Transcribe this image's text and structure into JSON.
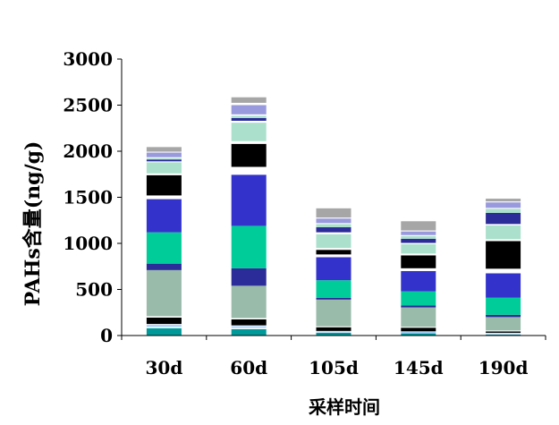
{
  "chart_data": {
    "type": "bar",
    "stacked": true,
    "title": "",
    "xlabel": "采样时间",
    "ylabel": "PAHs含量(ng/g)",
    "ylim": [
      0,
      3000
    ],
    "yticks": [
      0,
      500,
      1000,
      1500,
      2000,
      2500,
      3000
    ],
    "grid": false,
    "legend": "none",
    "categories": [
      "30d",
      "60d",
      "105d",
      "145d",
      "190d"
    ],
    "series": [
      {
        "color": "#009999",
        "values": [
          80,
          70,
          30,
          25,
          10
        ]
      },
      {
        "color": "#ffffff",
        "values": [
          15,
          15,
          5,
          5,
          5
        ]
      },
      {
        "color": "#99ccff",
        "values": [
          20,
          15,
          10,
          10,
          10
        ]
      },
      {
        "color": "#ffffff",
        "values": [
          10,
          10,
          5,
          5,
          5
        ]
      },
      {
        "color": "#000000",
        "values": [
          70,
          65,
          40,
          40,
          15
        ]
      },
      {
        "color": "#ffffff",
        "values": [
          15,
          15,
          10,
          10,
          10
        ]
      },
      {
        "color": "#99bbaa",
        "values": [
          500,
          350,
          290,
          210,
          145
        ]
      },
      {
        "color": "#2b2b99",
        "values": [
          70,
          190,
          20,
          20,
          25
        ]
      },
      {
        "color": "#00cc99",
        "values": [
          340,
          460,
          190,
          155,
          185
        ]
      },
      {
        "color": "#3333cc",
        "values": [
          360,
          555,
          250,
          220,
          265
        ]
      },
      {
        "color": "#ffffff",
        "values": [
          40,
          85,
          30,
          30,
          50
        ]
      },
      {
        "color": "#000000",
        "values": [
          220,
          250,
          50,
          140,
          300
        ]
      },
      {
        "color": "#ffffff",
        "values": [
          20,
          30,
          20,
          20,
          20
        ]
      },
      {
        "color": "#aae0cc",
        "values": [
          120,
          200,
          150,
          100,
          150
        ]
      },
      {
        "color": "#ffffff",
        "values": [
          10,
          20,
          20,
          15,
          15
        ]
      },
      {
        "color": "#2b2b99",
        "values": [
          20,
          30,
          55,
          45,
          120
        ]
      },
      {
        "color": "#aae0cc",
        "values": [
          15,
          25,
          35,
          30,
          45
        ]
      },
      {
        "color": "#ffffff",
        "values": [
          10,
          15,
          10,
          10,
          10
        ]
      },
      {
        "color": "#9999dd",
        "values": [
          50,
          100,
          50,
          40,
          60
        ]
      },
      {
        "color": "#ffffff",
        "values": [
          10,
          25,
          10,
          10,
          10
        ]
      },
      {
        "color": "#a6a6a6",
        "values": [
          50,
          60,
          100,
          100,
          30
        ]
      }
    ]
  }
}
